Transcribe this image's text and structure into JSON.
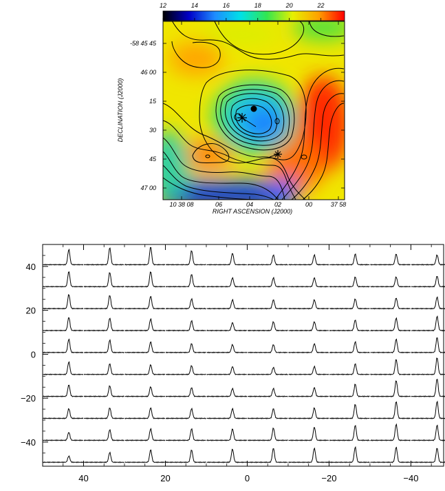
{
  "chart_data": [
    {
      "type": "heatmap",
      "colorbar": {
        "ticks": [
          "12",
          "14",
          "16",
          "18",
          "20",
          "22"
        ],
        "range": [
          12,
          23.5
        ],
        "colors": [
          "#000000",
          "#0000c8",
          "#1e8cff",
          "#00e1e6",
          "#32e650",
          "#e6f000",
          "#ffa000",
          "#ff0000"
        ]
      },
      "ylabel": "DECLINATION (J2000)",
      "xlabel": "RIGHT ASCENSION (J2000)",
      "y_ticks": [
        "-58 45 45",
        "46 00",
        "15",
        "30",
        "45",
        "47 00"
      ],
      "x_ticks": [
        "10 38 08",
        "06",
        "04",
        "02",
        "00",
        "37 58"
      ],
      "contours": 10,
      "markers": [
        {
          "kind": "filled-circle"
        },
        {
          "kind": "star"
        },
        {
          "kind": "star"
        }
      ]
    },
    {
      "type": "line",
      "description_grid": {
        "rows": 10,
        "cols": 10
      },
      "x_ticks": [
        "40",
        "20",
        "0",
        "−20",
        "−40"
      ],
      "y_ticks": [
        "40",
        "20",
        "0",
        "−20",
        "−40"
      ],
      "xlim": [
        50,
        -48
      ],
      "ylim": [
        -51,
        50
      ],
      "spacing": 10,
      "peak_heights": [
        [
          0.85,
          0.95,
          1.0,
          0.8,
          0.65,
          0.55,
          0.55,
          0.6,
          0.6,
          0.55
        ],
        [
          0.85,
          0.8,
          0.85,
          0.7,
          0.5,
          0.5,
          0.5,
          0.55,
          0.55,
          0.6
        ],
        [
          0.8,
          0.75,
          0.7,
          0.55,
          0.5,
          0.5,
          0.5,
          0.55,
          0.6,
          0.65
        ],
        [
          0.75,
          0.7,
          0.65,
          0.55,
          0.45,
          0.5,
          0.5,
          0.6,
          0.7,
          0.8
        ],
        [
          0.75,
          0.7,
          0.6,
          0.5,
          0.45,
          0.45,
          0.5,
          0.6,
          0.75,
          0.85
        ],
        [
          0.7,
          0.6,
          0.55,
          0.5,
          0.45,
          0.4,
          0.45,
          0.6,
          0.85,
          0.95
        ],
        [
          0.65,
          0.6,
          0.55,
          0.5,
          0.45,
          0.45,
          0.5,
          0.7,
          0.9,
          1.0
        ],
        [
          0.55,
          0.6,
          0.6,
          0.55,
          0.55,
          0.55,
          0.6,
          0.8,
          0.95,
          0.95
        ],
        [
          0.45,
          0.6,
          0.65,
          0.65,
          0.65,
          0.7,
          0.75,
          0.85,
          0.9,
          0.85
        ],
        [
          0.35,
          0.55,
          0.7,
          0.7,
          0.75,
          0.8,
          0.8,
          0.85,
          0.85,
          0.8
        ]
      ]
    }
  ]
}
